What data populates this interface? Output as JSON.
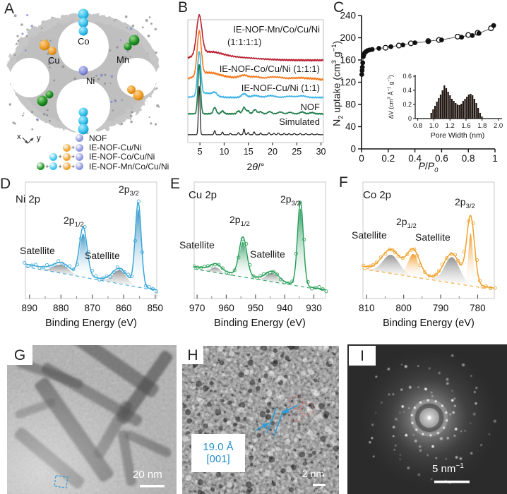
{
  "figure": {
    "background": "#ffffff"
  },
  "panels": {
    "a": {
      "letter": "A",
      "labels": {
        "co": "Co",
        "cu": "Cu",
        "mn": "Mn",
        "ni": "Ni"
      },
      "axis": {
        "x": "x",
        "y": "y"
      },
      "plus": "+",
      "sphere_colors": {
        "nof": "#8d95dd",
        "cu": "#f0a12c",
        "co": "#3cc4ee",
        "mn": "#219427"
      },
      "legend": [
        {
          "label": "NOF",
          "spheres": [
            "nof"
          ]
        },
        {
          "label": "IE-NOF-Cu/Ni",
          "spheres": [
            "cu",
            "nof"
          ]
        },
        {
          "label": "IE-NOF-Co/Cu/Ni",
          "spheres": [
            "co",
            "cu",
            "nof"
          ]
        },
        {
          "label": "IE-NOF-Mn/Co/Cu/Ni",
          "spheres": [
            "mn",
            "co",
            "cu",
            "nof"
          ]
        }
      ]
    },
    "b": {
      "letter": "B",
      "xlabel_rich": [
        [
          "t",
          "2"
        ],
        [
          "i",
          "θ"
        ],
        [
          "t",
          "/°"
        ]
      ]
    },
    "c": {
      "letter": "C",
      "ylabel_rich": [
        [
          "t",
          "N"
        ],
        [
          "sub",
          "2"
        ],
        [
          "t",
          " uptake (cm"
        ],
        [
          "sup",
          "3"
        ],
        [
          "t",
          " g"
        ],
        [
          "sup",
          "−1"
        ],
        [
          "t",
          ")"
        ]
      ],
      "xlabel_rich": [
        [
          "i",
          "P"
        ],
        [
          "t",
          "/"
        ],
        [
          "i",
          "P"
        ],
        [
          "isub",
          "0"
        ]
      ]
    },
    "d": {
      "letter": "D",
      "xlabel": "Binding Energy (eV)"
    },
    "e": {
      "letter": "E",
      "xlabel": "Binding Energy (eV)"
    },
    "f": {
      "letter": "F",
      "xlabel": "Binding Energy (eV)"
    },
    "g": {
      "letter": "G",
      "scalebar": "20 nm"
    },
    "h": {
      "letter": "H",
      "annotation": [
        "19.0 Å",
        "[001]"
      ],
      "scalebar": "2 nm"
    },
    "i": {
      "letter": "I",
      "scalebar_rich": [
        [
          "t",
          "5 nm"
        ],
        [
          "sup",
          "−1"
        ]
      ]
    }
  },
  "chart_data": [
    {
      "id": "xrd",
      "type": "line",
      "xlabel": "2θ/°",
      "xrange": [
        2.5,
        30.5
      ],
      "xticks": [
        5,
        10,
        15,
        20,
        25,
        30
      ],
      "series": [
        {
          "name": "IE-NOF-Mn/Co/Cu/Ni (1:1:1:1)",
          "color": "#b92233",
          "base": 0.33,
          "noise": 1.3,
          "seed": 1,
          "peaks": [
            [
              4.85,
              0.315,
              0.55
            ],
            [
              6.8,
              0.05,
              2.6
            ],
            [
              11.0,
              0.025,
              5.5
            ]
          ],
          "label_lines": [
            "IE-NOF-Mn/Co/Cu/Ni",
            "(1:1:1:1)"
          ]
        },
        {
          "name": "IE-NOF-Co/Cu/Ni (1:1:1)",
          "color": "#f47b20",
          "base": 0.49,
          "noise": 1.4,
          "seed": 7,
          "peaks": [
            [
              4.85,
              0.355,
              0.42
            ],
            [
              6.5,
              0.045,
              2.2
            ],
            [
              10.0,
              0.02,
              4.0
            ],
            [
              14.1,
              0.026,
              0.9
            ],
            [
              16.6,
              0.02,
              1.0
            ],
            [
              19.6,
              0.02,
              1.1
            ],
            [
              21.6,
              0.016,
              1.0
            ],
            [
              24.1,
              0.013,
              1.1
            ],
            [
              26.2,
              0.014,
              1.0
            ],
            [
              28.5,
              0.01,
              1.0
            ]
          ],
          "label": "IE-NOF-Co/Cu/Ni (1:1:1)"
        },
        {
          "name": "IE-NOF-Cu/Ni (1:1)",
          "color": "#3fb4e6",
          "base": 0.633,
          "noise": 1.1,
          "seed": 13,
          "peaks": [
            [
              4.85,
              0.35,
              0.34
            ],
            [
              6.3,
              0.035,
              1.6
            ],
            [
              8.05,
              0.024,
              0.45
            ],
            [
              14.1,
              0.03,
              0.5
            ],
            [
              16.4,
              0.016,
              0.8
            ],
            [
              19.6,
              0.015,
              0.9
            ],
            [
              23.5,
              0.01,
              1.0
            ],
            [
              26.1,
              0.013,
              0.8
            ]
          ],
          "label": "IE-NOF-Cu/Ni (1:1)"
        },
        {
          "name": "NOF",
          "color": "#1e7b4a",
          "base": 0.766,
          "noise": 0.9,
          "seed": 21,
          "peaks": [
            [
              4.85,
              0.4,
              0.27
            ],
            [
              8.05,
              0.052,
              0.3
            ],
            [
              9.65,
              0.023,
              0.3
            ],
            [
              12.95,
              0.024,
              0.3
            ],
            [
              14.1,
              0.052,
              0.3
            ],
            [
              14.9,
              0.024,
              0.3
            ],
            [
              16.35,
              0.034,
              0.35
            ],
            [
              17.5,
              0.017,
              0.35
            ],
            [
              19.4,
              0.018,
              0.4
            ],
            [
              21.6,
              0.015,
              0.45
            ],
            [
              23.6,
              0.012,
              0.45
            ],
            [
              26.1,
              0.015,
              0.45
            ],
            [
              28.1,
              0.01,
              0.45
            ]
          ],
          "label": "NOF"
        },
        {
          "name": "Simulated",
          "color": "#1a1a1a",
          "base": 0.936,
          "noise": 0.25,
          "seed": 33,
          "peaks": [
            [
              4.85,
              0.395,
              0.16
            ],
            [
              8.05,
              0.034,
              0.14
            ],
            [
              9.65,
              0.022,
              0.14
            ],
            [
              11.3,
              0.012,
              0.14
            ],
            [
              12.95,
              0.018,
              0.14
            ],
            [
              14.1,
              0.046,
              0.14
            ],
            [
              14.95,
              0.018,
              0.14
            ],
            [
              16.2,
              0.024,
              0.14
            ],
            [
              17.55,
              0.014,
              0.14
            ],
            [
              19.25,
              0.017,
              0.15
            ],
            [
              20.3,
              0.012,
              0.15
            ],
            [
              21.2,
              0.014,
              0.15
            ],
            [
              22.4,
              0.011,
              0.15
            ],
            [
              23.4,
              0.009,
              0.15
            ],
            [
              24.5,
              0.011,
              0.15
            ],
            [
              25.7,
              0.011,
              0.15
            ],
            [
              26.9,
              0.009,
              0.15
            ],
            [
              28.1,
              0.008,
              0.15
            ],
            [
              29.2,
              0.006,
              0.15
            ]
          ],
          "label": "Simulated"
        }
      ]
    },
    {
      "id": "isotherm",
      "type": "scatter",
      "ylabel": "N2 uptake (cm3 g-1)",
      "xlabel": "P/P0",
      "xlim": [
        0,
        1.0
      ],
      "ylim": [
        0,
        240
      ],
      "xticks": [
        0,
        0.2,
        0.4,
        0.6,
        0.8,
        1.0
      ],
      "yticks": [
        0,
        40,
        80,
        120,
        160,
        200,
        240
      ],
      "adsorption": [
        [
          0.002,
          134
        ],
        [
          0.004,
          141
        ],
        [
          0.006,
          147
        ],
        [
          0.009,
          155
        ],
        [
          0.013,
          166
        ],
        [
          0.018,
          170
        ],
        [
          0.024,
          173
        ],
        [
          0.033,
          175
        ],
        [
          0.045,
          177
        ],
        [
          0.06,
          178
        ],
        [
          0.08,
          179
        ],
        [
          0.13,
          181
        ],
        [
          0.22,
          184
        ],
        [
          0.31,
          187
        ],
        [
          0.4,
          191
        ],
        [
          0.5,
          193
        ],
        [
          0.6,
          196
        ],
        [
          0.75,
          201
        ],
        [
          0.83,
          204
        ],
        [
          0.88,
          208
        ],
        [
          0.99,
          222
        ]
      ],
      "desorption": [
        [
          0.18,
          182
        ],
        [
          0.28,
          186
        ],
        [
          0.37,
          190
        ],
        [
          0.5,
          194
        ],
        [
          0.58,
          196
        ],
        [
          0.72,
          202
        ],
        [
          0.8,
          205
        ],
        [
          0.87,
          209
        ],
        [
          0.97,
          217
        ]
      ]
    },
    {
      "id": "pore",
      "type": "bar",
      "ylabel": "ΔV (cm3 A-1 g-1)",
      "xlabel": "Pore Width (nm)",
      "ylim": [
        0,
        0.6
      ],
      "yticks": [
        0,
        0.2,
        0.4,
        0.6
      ],
      "xtick_labels": [
        "0.8",
        "1.0",
        "1.2",
        "1.6",
        "1.8",
        "2.0"
      ],
      "bar_span_frac": [
        0.18,
        0.8
      ],
      "values": [
        0.08,
        0.13,
        0.18,
        0.24,
        0.29,
        0.34,
        0.4,
        0.47,
        0.43,
        0.38,
        0.33,
        0.28,
        0.25,
        0.22,
        0.2,
        0.19,
        0.21,
        0.25,
        0.28,
        0.31,
        0.34,
        0.35,
        0.33,
        0.28,
        0.22,
        0.15,
        0.08,
        0.03
      ]
    },
    {
      "id": "ni2p",
      "type": "line",
      "color": "#3ba7d7",
      "fill_top": "#1f85bd",
      "domain": [
        891.3,
        849.5
      ],
      "xticks": [
        890,
        880,
        870,
        860,
        850
      ],
      "xminor": [
        885,
        875,
        865,
        855
      ],
      "base_left": 0.33,
      "base_right": 0.02,
      "peaks": [
        [
          855.4,
          1.0,
          0.95
        ],
        [
          872.9,
          0.58,
          1.2
        ],
        [
          861.3,
          0.17,
          2.3
        ],
        [
          879.9,
          0.1,
          2.5
        ]
      ],
      "fills": [
        [
          855.4,
          0.93,
          0.9
        ],
        [
          872.9,
          0.52,
          1.15
        ]
      ],
      "sats": [
        [
          861.3,
          0.16,
          2.1
        ],
        [
          879.9,
          0.1,
          2.4
        ]
      ],
      "labels": [
        {
          "rich": [
            [
              "t",
              "Ni 2p"
            ]
          ],
          "x": 22,
          "y": 26
        },
        {
          "rich": [
            [
              "t",
              "2p"
            ],
            [
              "sub",
              "1/2"
            ]
          ],
          "x": 90,
          "y": 56
        },
        {
          "rich": [
            [
              "t",
              "2p"
            ],
            [
              "sub",
              "3/2"
            ]
          ],
          "x": 168,
          "y": 12
        },
        {
          "rich": [
            [
              "t",
              "Satellite"
            ]
          ],
          "x": 28,
          "y": 99
        },
        {
          "rich": [
            [
              "t",
              "Satellite"
            ]
          ],
          "x": 120,
          "y": 106
        }
      ]
    },
    {
      "id": "cu2p",
      "type": "line",
      "color": "#2ca05a",
      "fill_top": "#169150",
      "domain": [
        971,
        926
      ],
      "xticks": [
        970,
        960,
        950,
        940,
        930
      ],
      "xminor": [
        965,
        955,
        945,
        935
      ],
      "base_left": 0.3,
      "base_right": 0.02,
      "peaks": [
        [
          934.6,
          1.0,
          1.0
        ],
        [
          954.3,
          0.46,
          1.3
        ],
        [
          944.3,
          0.11,
          2.1
        ],
        [
          963.6,
          0.08,
          1.8
        ]
      ],
      "fills": [
        [
          934.6,
          0.93,
          0.9
        ],
        [
          954.3,
          0.42,
          1.25
        ]
      ],
      "sats": [
        [
          944.3,
          0.1,
          1.9
        ],
        [
          963.6,
          0.06,
          1.6
        ]
      ],
      "labels": [
        {
          "rich": [
            [
              "t",
              "Cu 2p"
            ]
          ],
          "x": 28,
          "y": 20
        },
        {
          "rich": [
            [
              "t",
              "2p"
            ],
            [
              "sub",
              "1/2"
            ]
          ],
          "x": 86,
          "y": 55
        },
        {
          "rich": [
            [
              "t",
              "2p"
            ],
            [
              "sub",
              "3/2"
            ]
          ],
          "x": 158,
          "y": 26
        },
        {
          "rich": [
            [
              "t",
              "Satellite"
            ]
          ],
          "x": 15,
          "y": 91
        },
        {
          "rich": [
            [
              "t",
              "Satellite"
            ]
          ],
          "x": 115,
          "y": 104
        }
      ]
    },
    {
      "id": "co2p",
      "type": "line",
      "color": "#f0a02a",
      "fill_top": "#ef8d0d",
      "domain": [
        811,
        775.5
      ],
      "xticks": [
        810,
        800,
        790,
        780
      ],
      "xminor": [
        805,
        795,
        785
      ],
      "base_left": 0.3,
      "base_right": 0.04,
      "peaks": [
        [
          781.9,
          0.8,
          1.05
        ],
        [
          797.4,
          0.3,
          1.7
        ],
        [
          786.9,
          0.33,
          2.2
        ],
        [
          803.4,
          0.26,
          2.4
        ]
      ],
      "fills": [
        [
          781.9,
          0.62,
          0.62
        ],
        [
          797.4,
          0.27,
          1.4
        ]
      ],
      "sats": [
        [
          786.9,
          0.3,
          2.0
        ],
        [
          803.4,
          0.22,
          2.2
        ]
      ],
      "labels": [
        {
          "rich": [
            [
              "t",
              "Co 2p"
            ]
          ],
          "x": 36,
          "y": 20
        },
        {
          "rich": [
            [
              "t",
              "2p"
            ],
            [
              "sub",
              "1/2"
            ]
          ],
          "x": 83,
          "y": 58
        },
        {
          "rich": [
            [
              "t",
              "2p"
            ],
            [
              "sub",
              "3/2"
            ]
          ],
          "x": 166,
          "y": 30
        },
        {
          "rich": [
            [
              "t",
              "Satellite"
            ]
          ],
          "x": 20,
          "y": 77
        },
        {
          "rich": [
            [
              "t",
              "Satellite"
            ]
          ],
          "x": 110,
          "y": 80
        }
      ]
    }
  ]
}
